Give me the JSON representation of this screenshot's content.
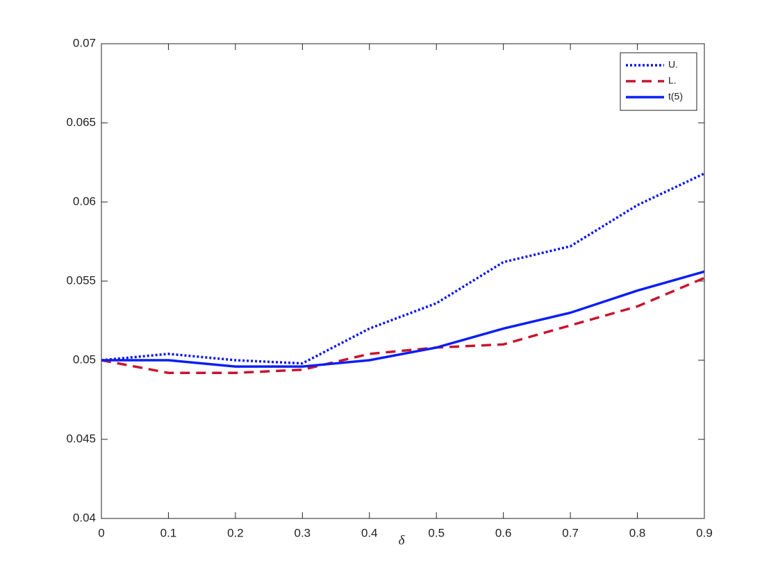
{
  "chart_data": {
    "type": "line",
    "x": [
      0,
      0.1,
      0.2,
      0.3,
      0.4,
      0.5,
      0.6,
      0.7,
      0.8,
      0.9
    ],
    "series": [
      {
        "name": "U.",
        "color": "#0a14f0",
        "style": "dotted",
        "values": [
          0.05,
          0.0504,
          0.05,
          0.0498,
          0.052,
          0.0536,
          0.0562,
          0.0572,
          0.0598,
          0.0618
        ]
      },
      {
        "name": "L.",
        "color": "#c8142e",
        "style": "dashed",
        "values": [
          0.05,
          0.0492,
          0.0492,
          0.0494,
          0.0504,
          0.0508,
          0.051,
          0.0522,
          0.0534,
          0.0552
        ]
      },
      {
        "name": "t(5)",
        "color": "#0a1ef5",
        "style": "solid",
        "values": [
          0.05,
          0.05,
          0.0496,
          0.0496,
          0.05,
          0.0508,
          0.052,
          0.053,
          0.0544,
          0.0556
        ]
      }
    ],
    "xlabel": "δ",
    "xlim": [
      0,
      0.9
    ],
    "xticks": [
      0,
      0.1,
      0.2,
      0.3,
      0.4,
      0.5,
      0.6,
      0.7,
      0.8,
      0.9
    ],
    "ylim": [
      0.04,
      0.07
    ],
    "yticks": [
      0.04,
      0.045,
      0.05,
      0.055,
      0.06,
      0.065,
      0.07
    ],
    "grid": false,
    "legend": "northeast"
  }
}
